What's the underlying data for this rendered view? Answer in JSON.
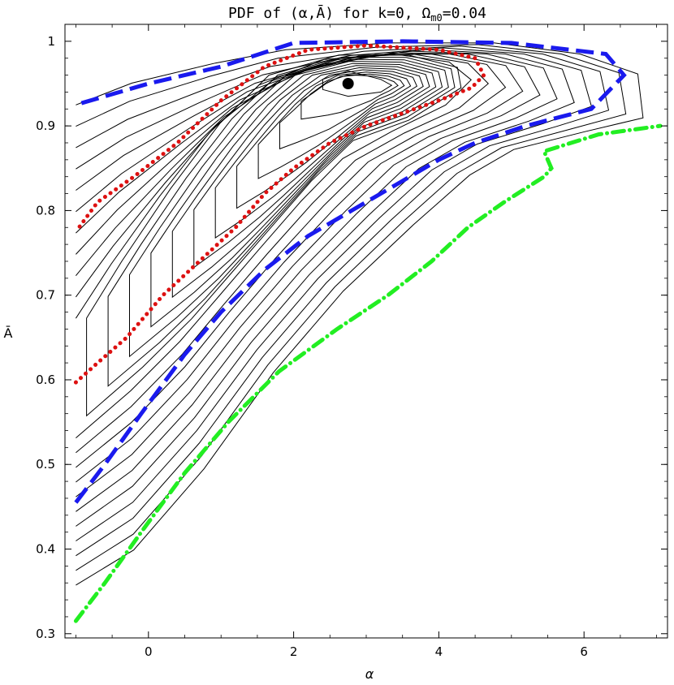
{
  "chart_data": {
    "type": "contour",
    "title_prefix": "PDF of (α,Ā) for k=0, Ω",
    "title_sub": "m0",
    "title_suffix": "=0.04",
    "xlabel": "α",
    "ylabel": "Ā",
    "xlim": [
      -1.15,
      7.15
    ],
    "ylim": [
      0.295,
      1.02
    ],
    "xticks": [
      0,
      2,
      4,
      6
    ],
    "xtick_labels": [
      "0",
      "2",
      "4",
      "6"
    ],
    "yticks": [
      0.3,
      0.4,
      0.5,
      0.6,
      0.7,
      0.8,
      0.9,
      1.0
    ],
    "ytick_labels": [
      "0.3",
      "0.4",
      "0.5",
      "0.6",
      "0.7",
      "0.8",
      "0.9",
      "1"
    ],
    "grid": false,
    "peak": {
      "x": 2.75,
      "y": 0.95
    },
    "colors": {
      "contours": "#000000",
      "red_dotted": "#dd1111",
      "blue_dashed": "#1a1aee",
      "green_dashdot": "#22ee22",
      "peak": "#000000"
    },
    "contour_levels": 22,
    "highlighted_contours": [
      {
        "style": "red-dotted",
        "points": [
          [
            -1.0,
            0.597
          ],
          [
            -0.7,
            0.62
          ],
          [
            -0.3,
            0.65
          ],
          [
            0.2,
            0.7
          ],
          [
            0.7,
            0.74
          ],
          [
            1.2,
            0.78
          ],
          [
            1.6,
            0.82
          ],
          [
            2.0,
            0.85
          ],
          [
            2.5,
            0.88
          ],
          [
            3.0,
            0.9
          ],
          [
            3.5,
            0.915
          ],
          [
            4.0,
            0.93
          ],
          [
            4.45,
            0.945
          ],
          [
            4.62,
            0.96
          ],
          [
            4.5,
            0.98
          ],
          [
            4.0,
            0.99
          ],
          [
            3.0,
            0.995
          ],
          [
            2.2,
            0.99
          ],
          [
            1.6,
            0.97
          ],
          [
            1.0,
            0.93
          ],
          [
            0.4,
            0.88
          ],
          [
            -0.2,
            0.84
          ],
          [
            -0.7,
            0.81
          ],
          [
            -1.0,
            0.775
          ]
        ]
      },
      {
        "style": "blue-dashed",
        "points": [
          [
            -1.0,
            0.455
          ],
          [
            -0.6,
            0.5
          ],
          [
            -0.1,
            0.56
          ],
          [
            0.5,
            0.63
          ],
          [
            1.0,
            0.68
          ],
          [
            1.6,
            0.73
          ],
          [
            2.2,
            0.77
          ],
          [
            2.8,
            0.8
          ],
          [
            3.4,
            0.83
          ],
          [
            4.0,
            0.86
          ],
          [
            4.5,
            0.88
          ],
          [
            5.2,
            0.9
          ],
          [
            6.1,
            0.92
          ],
          [
            6.55,
            0.96
          ],
          [
            6.3,
            0.985
          ],
          [
            5.0,
            0.998
          ],
          [
            3.5,
            1.0
          ],
          [
            2.0,
            0.998
          ],
          [
            1.0,
            0.97
          ],
          [
            0.0,
            0.95
          ],
          [
            -1.0,
            0.925
          ]
        ]
      },
      {
        "style": "green-dashdot",
        "points": [
          [
            -1.0,
            0.315
          ],
          [
            -0.6,
            0.36
          ],
          [
            -0.1,
            0.42
          ],
          [
            0.5,
            0.49
          ],
          [
            1.1,
            0.55
          ],
          [
            1.8,
            0.61
          ],
          [
            2.6,
            0.66
          ],
          [
            3.3,
            0.7
          ],
          [
            3.9,
            0.74
          ],
          [
            4.4,
            0.78
          ],
          [
            4.9,
            0.81
          ],
          [
            5.45,
            0.84
          ],
          [
            5.55,
            0.85
          ],
          [
            5.45,
            0.87
          ],
          [
            6.2,
            0.89
          ],
          [
            7.05,
            0.9
          ]
        ]
      }
    ]
  }
}
